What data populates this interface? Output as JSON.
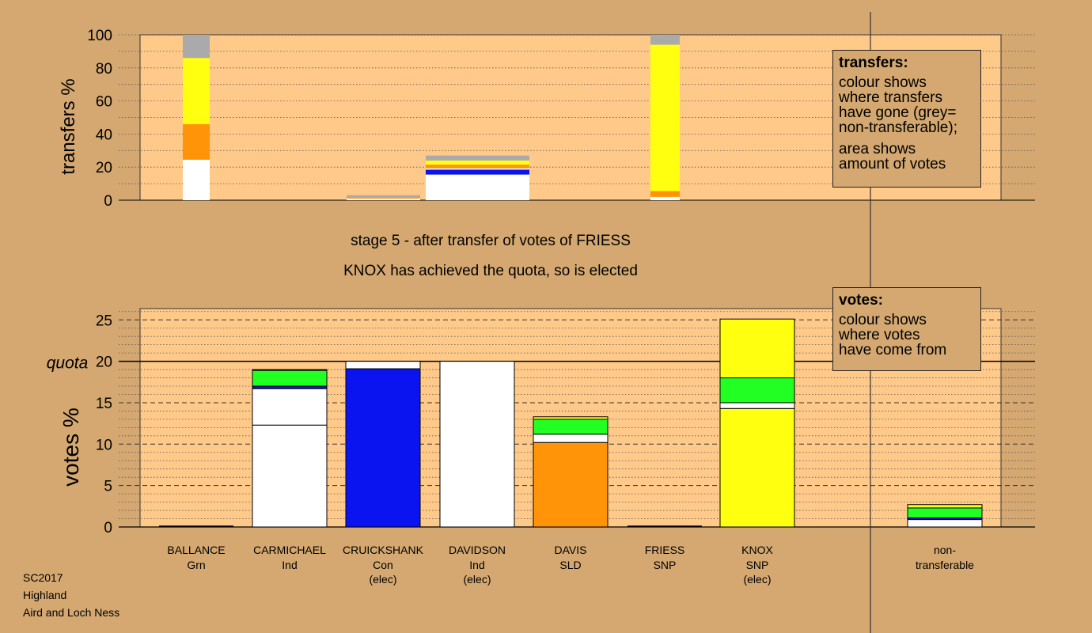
{
  "stage": {
    "line1": "stage 5 - after transfer of votes of FRIESS",
    "line2": "KNOX has achieved the quota, so is elected"
  },
  "footer": {
    "line1": "SC2017",
    "line2": "Highland",
    "line3": "Aird and Loch Ness"
  },
  "legend_transfers": {
    "title": "transfers:",
    "desc": "colour shows\nwhere transfers\nhave gone (grey=\nnon-transferable);",
    "desc2": "area shows\namount of votes"
  },
  "legend_votes": {
    "title": "votes:",
    "desc": "colour shows\nwhere votes\nhave come from"
  },
  "colors": {
    "background": "#d4a870",
    "panel": "#ffc98a",
    "white": "#ffffff",
    "blue": "#0a14f0",
    "orange": "#ff9408",
    "green": "#22ff22",
    "yellow": "#ffff10",
    "grey": "#aaaaaa"
  },
  "chart_data": [
    {
      "type": "bar",
      "ylabel": "transfers %",
      "ylim": [
        0,
        100
      ],
      "yticks": [
        0,
        20,
        40,
        60,
        80,
        100
      ],
      "bars": [
        {
          "column": "BALLANCE",
          "segments": [
            {
              "color": "white",
              "value": 24.5
            },
            {
              "color": "orange",
              "value": 21.5
            },
            {
              "color": "yellow",
              "value": 40
            },
            {
              "color": "grey",
              "value": 14
            }
          ]
        },
        {
          "column": "CRUICKSHANK",
          "segments": [
            {
              "color": "white",
              "value": 1
            },
            {
              "color": "orange",
              "value": 0.8
            },
            {
              "color": "grey",
              "value": 1.2
            }
          ]
        },
        {
          "column": "DAVIDSON",
          "segments": [
            {
              "color": "white",
              "value": 15.5
            },
            {
              "color": "blue",
              "value": 3
            },
            {
              "color": "white",
              "value": 0.8
            },
            {
              "color": "orange",
              "value": 2.2
            },
            {
              "color": "yellow",
              "value": 2.5
            },
            {
              "color": "grey",
              "value": 3
            }
          ]
        },
        {
          "column": "FRIESS",
          "segments": [
            {
              "color": "white",
              "value": 2
            },
            {
              "color": "orange",
              "value": 3.5
            },
            {
              "color": "yellow",
              "value": 88.5
            },
            {
              "color": "grey",
              "value": 6
            }
          ]
        }
      ]
    },
    {
      "type": "bar",
      "ylabel": "votes %",
      "ylim": [
        0,
        26
      ],
      "yticks": [
        0,
        5,
        10,
        15,
        20,
        25
      ],
      "quota": 20,
      "quota_label": "quota",
      "categories": [
        {
          "name": "BALLANCE",
          "party": "Grn",
          "status": ""
        },
        {
          "name": "CARMICHAEL",
          "party": "Ind",
          "status": ""
        },
        {
          "name": "CRUICKSHANK",
          "party": "Con",
          "status": "(elec)"
        },
        {
          "name": "DAVIDSON",
          "party": "Ind",
          "status": "(elec)"
        },
        {
          "name": "DAVIS",
          "party": "SLD",
          "status": ""
        },
        {
          "name": "FRIESS",
          "party": "SNP",
          "status": ""
        },
        {
          "name": "KNOX",
          "party": "SNP",
          "status": "(elec)"
        },
        {
          "name": "non-",
          "party": "transferable",
          "status": ""
        }
      ],
      "stacks": [
        [],
        [
          {
            "color": "white",
            "value": 12.3
          },
          {
            "color": "white",
            "value": 4.4
          },
          {
            "color": "blue",
            "value": 0.3
          },
          {
            "color": "green",
            "value": 1.9
          },
          {
            "color": "yellow",
            "value": 0.1
          }
        ],
        [
          {
            "color": "blue",
            "value": 19.1
          },
          {
            "color": "white",
            "value": 0.9
          }
        ],
        [
          {
            "color": "white",
            "value": 20
          }
        ],
        [
          {
            "color": "orange",
            "value": 10.2
          },
          {
            "color": "white",
            "value": 1
          },
          {
            "color": "green",
            "value": 1.8
          },
          {
            "color": "yellow",
            "value": 0.3
          }
        ],
        [],
        [
          {
            "color": "yellow",
            "value": 14.3
          },
          {
            "color": "white",
            "value": 0.7
          },
          {
            "color": "green",
            "value": 3
          },
          {
            "color": "yellow",
            "value": 7.1
          }
        ],
        [
          {
            "color": "white",
            "value": 0.9
          },
          {
            "color": "blue",
            "value": 0.2
          },
          {
            "color": "green",
            "value": 1.2
          },
          {
            "color": "yellow",
            "value": 0.4
          }
        ]
      ]
    }
  ]
}
